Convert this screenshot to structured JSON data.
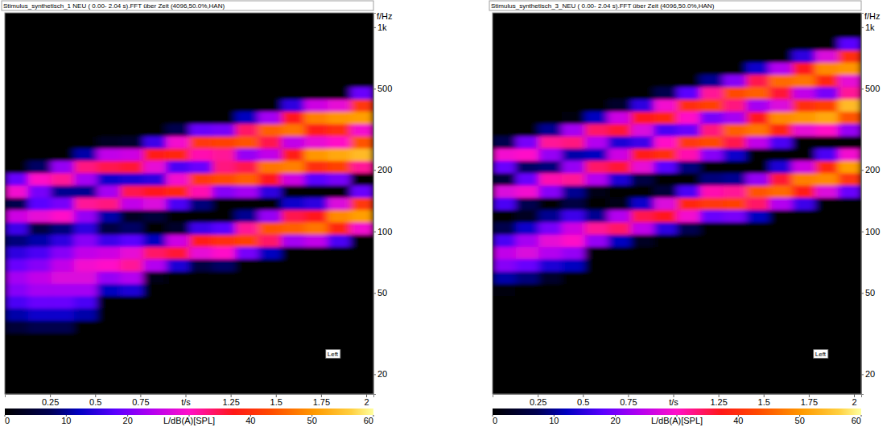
{
  "chart_data": [
    {
      "type": "heatmap",
      "title": "Stimulus_synthetisch_1 NEU ( 0.00- 2.04 s).FFT über Zeit (4096,50.0%,HAN)",
      "ylabel": "f/Hz",
      "annotation": "Left",
      "log": "y",
      "xlim": [
        0,
        2.04
      ],
      "ylim": [
        16,
        1176
      ],
      "xticks": [
        0.25,
        0.5,
        0.75,
        {
          "value": 1,
          "label": "t/s"
        },
        1.25,
        1.5,
        1.75,
        2
      ],
      "yticks": [
        20,
        50,
        100,
        200,
        500,
        {
          "value": 1000,
          "label": "1k"
        }
      ],
      "x_bins": [
        0,
        0.1275,
        0.255,
        0.3825,
        0.51,
        0.6375,
        0.765,
        0.8925,
        1.02,
        1.1475,
        1.275,
        1.4025,
        1.53,
        1.6575,
        1.785,
        1.9125,
        2.04
      ],
      "y_bins": [
        16,
        18.38,
        21.11,
        24.25,
        27.86,
        32,
        36.76,
        42.22,
        48.5,
        55.72,
        64,
        73.52,
        84.45,
        97.01,
        111.43,
        128,
        147.03,
        168.9,
        194.01,
        222.86,
        256,
        294.07,
        337.79,
        388.02,
        445.72,
        512,
        588.13,
        675.59,
        776.05,
        891.44,
        1024,
        1176
      ],
      "cells": [
        [
          0,
          0,
          0,
          0,
          0,
          0,
          0,
          0,
          0,
          0,
          0,
          0,
          0,
          0,
          0,
          0
        ],
        [
          0,
          0,
          0,
          0,
          0,
          0,
          0,
          0,
          0,
          0,
          0,
          0,
          0,
          0,
          0,
          0
        ],
        [
          0,
          0,
          0,
          0,
          0,
          0,
          0,
          0,
          0,
          0,
          0,
          0,
          0,
          0,
          0,
          0
        ],
        [
          0,
          0,
          0,
          0,
          0,
          0,
          0,
          0,
          0,
          0,
          0,
          0,
          0,
          0,
          0,
          0
        ],
        [
          0,
          0,
          0,
          0,
          0,
          0,
          0,
          0,
          0,
          0,
          0,
          0,
          0,
          0,
          0,
          0
        ],
        [
          5,
          7,
          7,
          0,
          0,
          0,
          0,
          0,
          0,
          0,
          0,
          0,
          0,
          0,
          0,
          0
        ],
        [
          11,
          13,
          13,
          11,
          0,
          0,
          0,
          0,
          0,
          0,
          0,
          0,
          0,
          0,
          0,
          0
        ],
        [
          17,
          19,
          19,
          17,
          0,
          0,
          0,
          0,
          0,
          0,
          0,
          0,
          0,
          0,
          0,
          0
        ],
        [
          21,
          23,
          23,
          23,
          12,
          14,
          0,
          0,
          0,
          0,
          0,
          0,
          0,
          0,
          0,
          0
        ],
        [
          23,
          25,
          27,
          27,
          22,
          24,
          2,
          0,
          0,
          0,
          0,
          0,
          0,
          0,
          0,
          0
        ],
        [
          19,
          21,
          25,
          29,
          30,
          32,
          24,
          14,
          6,
          8,
          0,
          0,
          0,
          0,
          0,
          0
        ],
        [
          15,
          17,
          21,
          25,
          26,
          28,
          34,
          36,
          28,
          30,
          20,
          12,
          0,
          0,
          0,
          0
        ],
        [
          9,
          11,
          15,
          21,
          16,
          18,
          12,
          26,
          38,
          40,
          42,
          34,
          23,
          25,
          17,
          0
        ],
        [
          16,
          6,
          9,
          15,
          6,
          8,
          0,
          4,
          16,
          18,
          32,
          44,
          45,
          47,
          39,
          29
        ],
        [
          26,
          28,
          30,
          22,
          11,
          3,
          5,
          0,
          0,
          0,
          10,
          22,
          35,
          37,
          49,
          51
        ],
        [
          7,
          18,
          20,
          32,
          33,
          25,
          27,
          17,
          9,
          0,
          0,
          0,
          13,
          15,
          27,
          41
        ],
        [
          29,
          20,
          10,
          10,
          23,
          35,
          37,
          39,
          31,
          21,
          23,
          15,
          0,
          0,
          0,
          19
        ],
        [
          19,
          30,
          32,
          23,
          13,
          14,
          15,
          29,
          41,
          43,
          45,
          37,
          26,
          18,
          20,
          0
        ],
        [
          0,
          8,
          22,
          33,
          35,
          36,
          28,
          17,
          19,
          33,
          35,
          47,
          48,
          40,
          42,
          32
        ],
        [
          0,
          0,
          0,
          11,
          25,
          26,
          38,
          39,
          31,
          32,
          22,
          25,
          38,
          50,
          52,
          54
        ],
        [
          0,
          0,
          0,
          0,
          3,
          4,
          16,
          29,
          41,
          42,
          44,
          35,
          25,
          28,
          30,
          44
        ],
        [
          0,
          0,
          0,
          0,
          0,
          0,
          0,
          7,
          19,
          20,
          34,
          45,
          47,
          38,
          40,
          29
        ],
        [
          0,
          0,
          0,
          0,
          0,
          0,
          0,
          0,
          0,
          0,
          12,
          23,
          37,
          48,
          50,
          51
        ],
        [
          0,
          0,
          0,
          0,
          0,
          0,
          0,
          0,
          0,
          0,
          0,
          0,
          15,
          26,
          28,
          41
        ],
        [
          0,
          0,
          0,
          0,
          0,
          0,
          0,
          0,
          0,
          0,
          0,
          0,
          0,
          0,
          0,
          19
        ],
        [
          0,
          0,
          0,
          0,
          0,
          0,
          0,
          0,
          0,
          0,
          0,
          0,
          0,
          0,
          0,
          0
        ],
        [
          0,
          0,
          0,
          0,
          0,
          0,
          0,
          0,
          0,
          0,
          0,
          0,
          0,
          0,
          0,
          0
        ],
        [
          0,
          0,
          0,
          0,
          0,
          0,
          0,
          0,
          0,
          0,
          0,
          0,
          0,
          0,
          0,
          0
        ],
        [
          0,
          0,
          0,
          0,
          0,
          0,
          0,
          0,
          0,
          0,
          0,
          0,
          0,
          0,
          0,
          0
        ],
        [
          0,
          0,
          0,
          0,
          0,
          0,
          0,
          0,
          0,
          0,
          0,
          0,
          0,
          0,
          0,
          0
        ],
        [
          0,
          0,
          0,
          0,
          0,
          0,
          0,
          0,
          0,
          0,
          0,
          0,
          0,
          0,
          0,
          0
        ]
      ],
      "colorbar": {
        "range": [
          0,
          60
        ],
        "ticks": [
          0,
          10,
          20,
          {
            "value": 30,
            "label": "L/dB(A)[SPL]"
          },
          40,
          50,
          60
        ]
      }
    },
    {
      "type": "heatmap",
      "title": "Stimulus_synthetisch_3_NEU ( 0.00- 2.04 s).FFT über Zeit (4096,50.0%,HAN)",
      "ylabel": "f/Hz",
      "annotation": "Left",
      "log": "y",
      "xlim": [
        0,
        2.04
      ],
      "ylim": [
        16,
        1176
      ],
      "xticks": [
        0.25,
        0.5,
        0.75,
        {
          "value": 1,
          "label": "t/s"
        },
        1.25,
        1.5,
        1.75,
        2
      ],
      "yticks": [
        20,
        50,
        100,
        200,
        500,
        {
          "value": 1000,
          "label": "1k"
        }
      ],
      "x_bins": [
        0,
        0.1275,
        0.255,
        0.3825,
        0.51,
        0.6375,
        0.765,
        0.8925,
        1.02,
        1.1475,
        1.275,
        1.4025,
        1.53,
        1.6575,
        1.785,
        1.9125,
        2.04
      ],
      "y_bins": [
        16,
        18.38,
        21.11,
        24.25,
        27.86,
        32,
        36.76,
        42.22,
        48.5,
        55.72,
        64,
        73.52,
        84.45,
        97.01,
        111.43,
        128,
        147.03,
        168.9,
        194.01,
        222.86,
        256,
        294.07,
        337.79,
        388.02,
        445.72,
        512,
        588.13,
        675.59,
        776.05,
        891.44,
        1024,
        1176
      ],
      "cells": [
        [
          0,
          0,
          0,
          0,
          0,
          0,
          0,
          0,
          0,
          0,
          0,
          0,
          0,
          0,
          0,
          0
        ],
        [
          0,
          0,
          0,
          0,
          0,
          0,
          0,
          0,
          0,
          0,
          0,
          0,
          0,
          0,
          0,
          0
        ],
        [
          0,
          0,
          0,
          0,
          0,
          0,
          0,
          0,
          0,
          0,
          0,
          0,
          0,
          0,
          0,
          0
        ],
        [
          0,
          0,
          0,
          0,
          0,
          0,
          0,
          0,
          0,
          0,
          0,
          0,
          0,
          0,
          0,
          0
        ],
        [
          0,
          0,
          0,
          0,
          0,
          0,
          0,
          0,
          0,
          0,
          0,
          0,
          0,
          0,
          0,
          0
        ],
        [
          0,
          0,
          0,
          0,
          0,
          0,
          0,
          0,
          0,
          0,
          0,
          0,
          0,
          0,
          0,
          0
        ],
        [
          0,
          0,
          0,
          0,
          0,
          0,
          0,
          0,
          0,
          0,
          0,
          0,
          0,
          0,
          0,
          0
        ],
        [
          0,
          0,
          0,
          0,
          0,
          0,
          0,
          0,
          0,
          0,
          0,
          0,
          0,
          0,
          0,
          0
        ],
        [
          1,
          0,
          0,
          0,
          0,
          0,
          0,
          0,
          0,
          0,
          0,
          0,
          0,
          0,
          0,
          0
        ],
        [
          11,
          9,
          4,
          0,
          0,
          0,
          0,
          0,
          0,
          0,
          0,
          0,
          0,
          0,
          0,
          0
        ],
        [
          21,
          19,
          14,
          12,
          0,
          0,
          0,
          0,
          0,
          0,
          0,
          0,
          0,
          0,
          0,
          0
        ],
        [
          25,
          27,
          24,
          22,
          0,
          0,
          0,
          0,
          0,
          0,
          0,
          0,
          0,
          0,
          0,
          0
        ],
        [
          17,
          23,
          28,
          30,
          22,
          12,
          3,
          0,
          0,
          0,
          0,
          0,
          0,
          0,
          0,
          0
        ],
        [
          7,
          13,
          20,
          26,
          32,
          34,
          25,
          15,
          7,
          0,
          0,
          0,
          0,
          0,
          0,
          0
        ],
        [
          0,
          3,
          10,
          16,
          10,
          24,
          35,
          37,
          29,
          19,
          20,
          12,
          0,
          0,
          0,
          0
        ],
        [
          17,
          7,
          0,
          6,
          0,
          2,
          13,
          27,
          39,
          41,
          42,
          34,
          24,
          16,
          0,
          0
        ],
        [
          27,
          29,
          21,
          10,
          2,
          0,
          0,
          5,
          17,
          31,
          32,
          44,
          46,
          38,
          27,
          19
        ],
        [
          5,
          19,
          31,
          32,
          24,
          14,
          6,
          0,
          0,
          9,
          10,
          22,
          36,
          48,
          49,
          41
        ],
        [
          19,
          8,
          9,
          22,
          34,
          36,
          28,
          18,
          9,
          0,
          0,
          0,
          14,
          26,
          39,
          51
        ],
        [
          29,
          30,
          22,
          11,
          12,
          26,
          38,
          40,
          31,
          21,
          13,
          0,
          0,
          0,
          17,
          29
        ],
        [
          7,
          20,
          32,
          33,
          24,
          14,
          16,
          30,
          41,
          43,
          35,
          25,
          17,
          0,
          0,
          0
        ],
        [
          0,
          0,
          10,
          23,
          34,
          36,
          27,
          17,
          19,
          33,
          45,
          47,
          39,
          28,
          30,
          22
        ],
        [
          0,
          0,
          0,
          1,
          12,
          26,
          37,
          39,
          30,
          20,
          23,
          37,
          49,
          50,
          52,
          44
        ],
        [
          0,
          0,
          0,
          0,
          0,
          4,
          15,
          29,
          40,
          42,
          33,
          23,
          27,
          40,
          42,
          54
        ],
        [
          0,
          0,
          0,
          0,
          0,
          0,
          0,
          7,
          18,
          32,
          43,
          45,
          36,
          25,
          20,
          32
        ],
        [
          0,
          0,
          0,
          0,
          0,
          0,
          0,
          0,
          0,
          10,
          21,
          35,
          46,
          47,
          39,
          28
        ],
        [
          0,
          0,
          0,
          0,
          0,
          0,
          0,
          0,
          0,
          0,
          0,
          13,
          24,
          37,
          49,
          50
        ],
        [
          0,
          0,
          0,
          0,
          0,
          0,
          0,
          0,
          0,
          0,
          0,
          0,
          0,
          15,
          27,
          40
        ],
        [
          0,
          0,
          0,
          0,
          0,
          0,
          0,
          0,
          0,
          0,
          0,
          0,
          0,
          0,
          0,
          18
        ],
        [
          0,
          0,
          0,
          0,
          0,
          0,
          0,
          0,
          0,
          0,
          0,
          0,
          0,
          0,
          0,
          0
        ],
        [
          0,
          0,
          0,
          0,
          0,
          0,
          0,
          0,
          0,
          0,
          0,
          0,
          0,
          0,
          0,
          0
        ]
      ],
      "colorbar": {
        "range": [
          0,
          60
        ],
        "ticks": [
          0,
          10,
          20,
          {
            "value": 30,
            "label": "L/dB(A)[SPL]"
          },
          40,
          50,
          60
        ]
      }
    }
  ]
}
